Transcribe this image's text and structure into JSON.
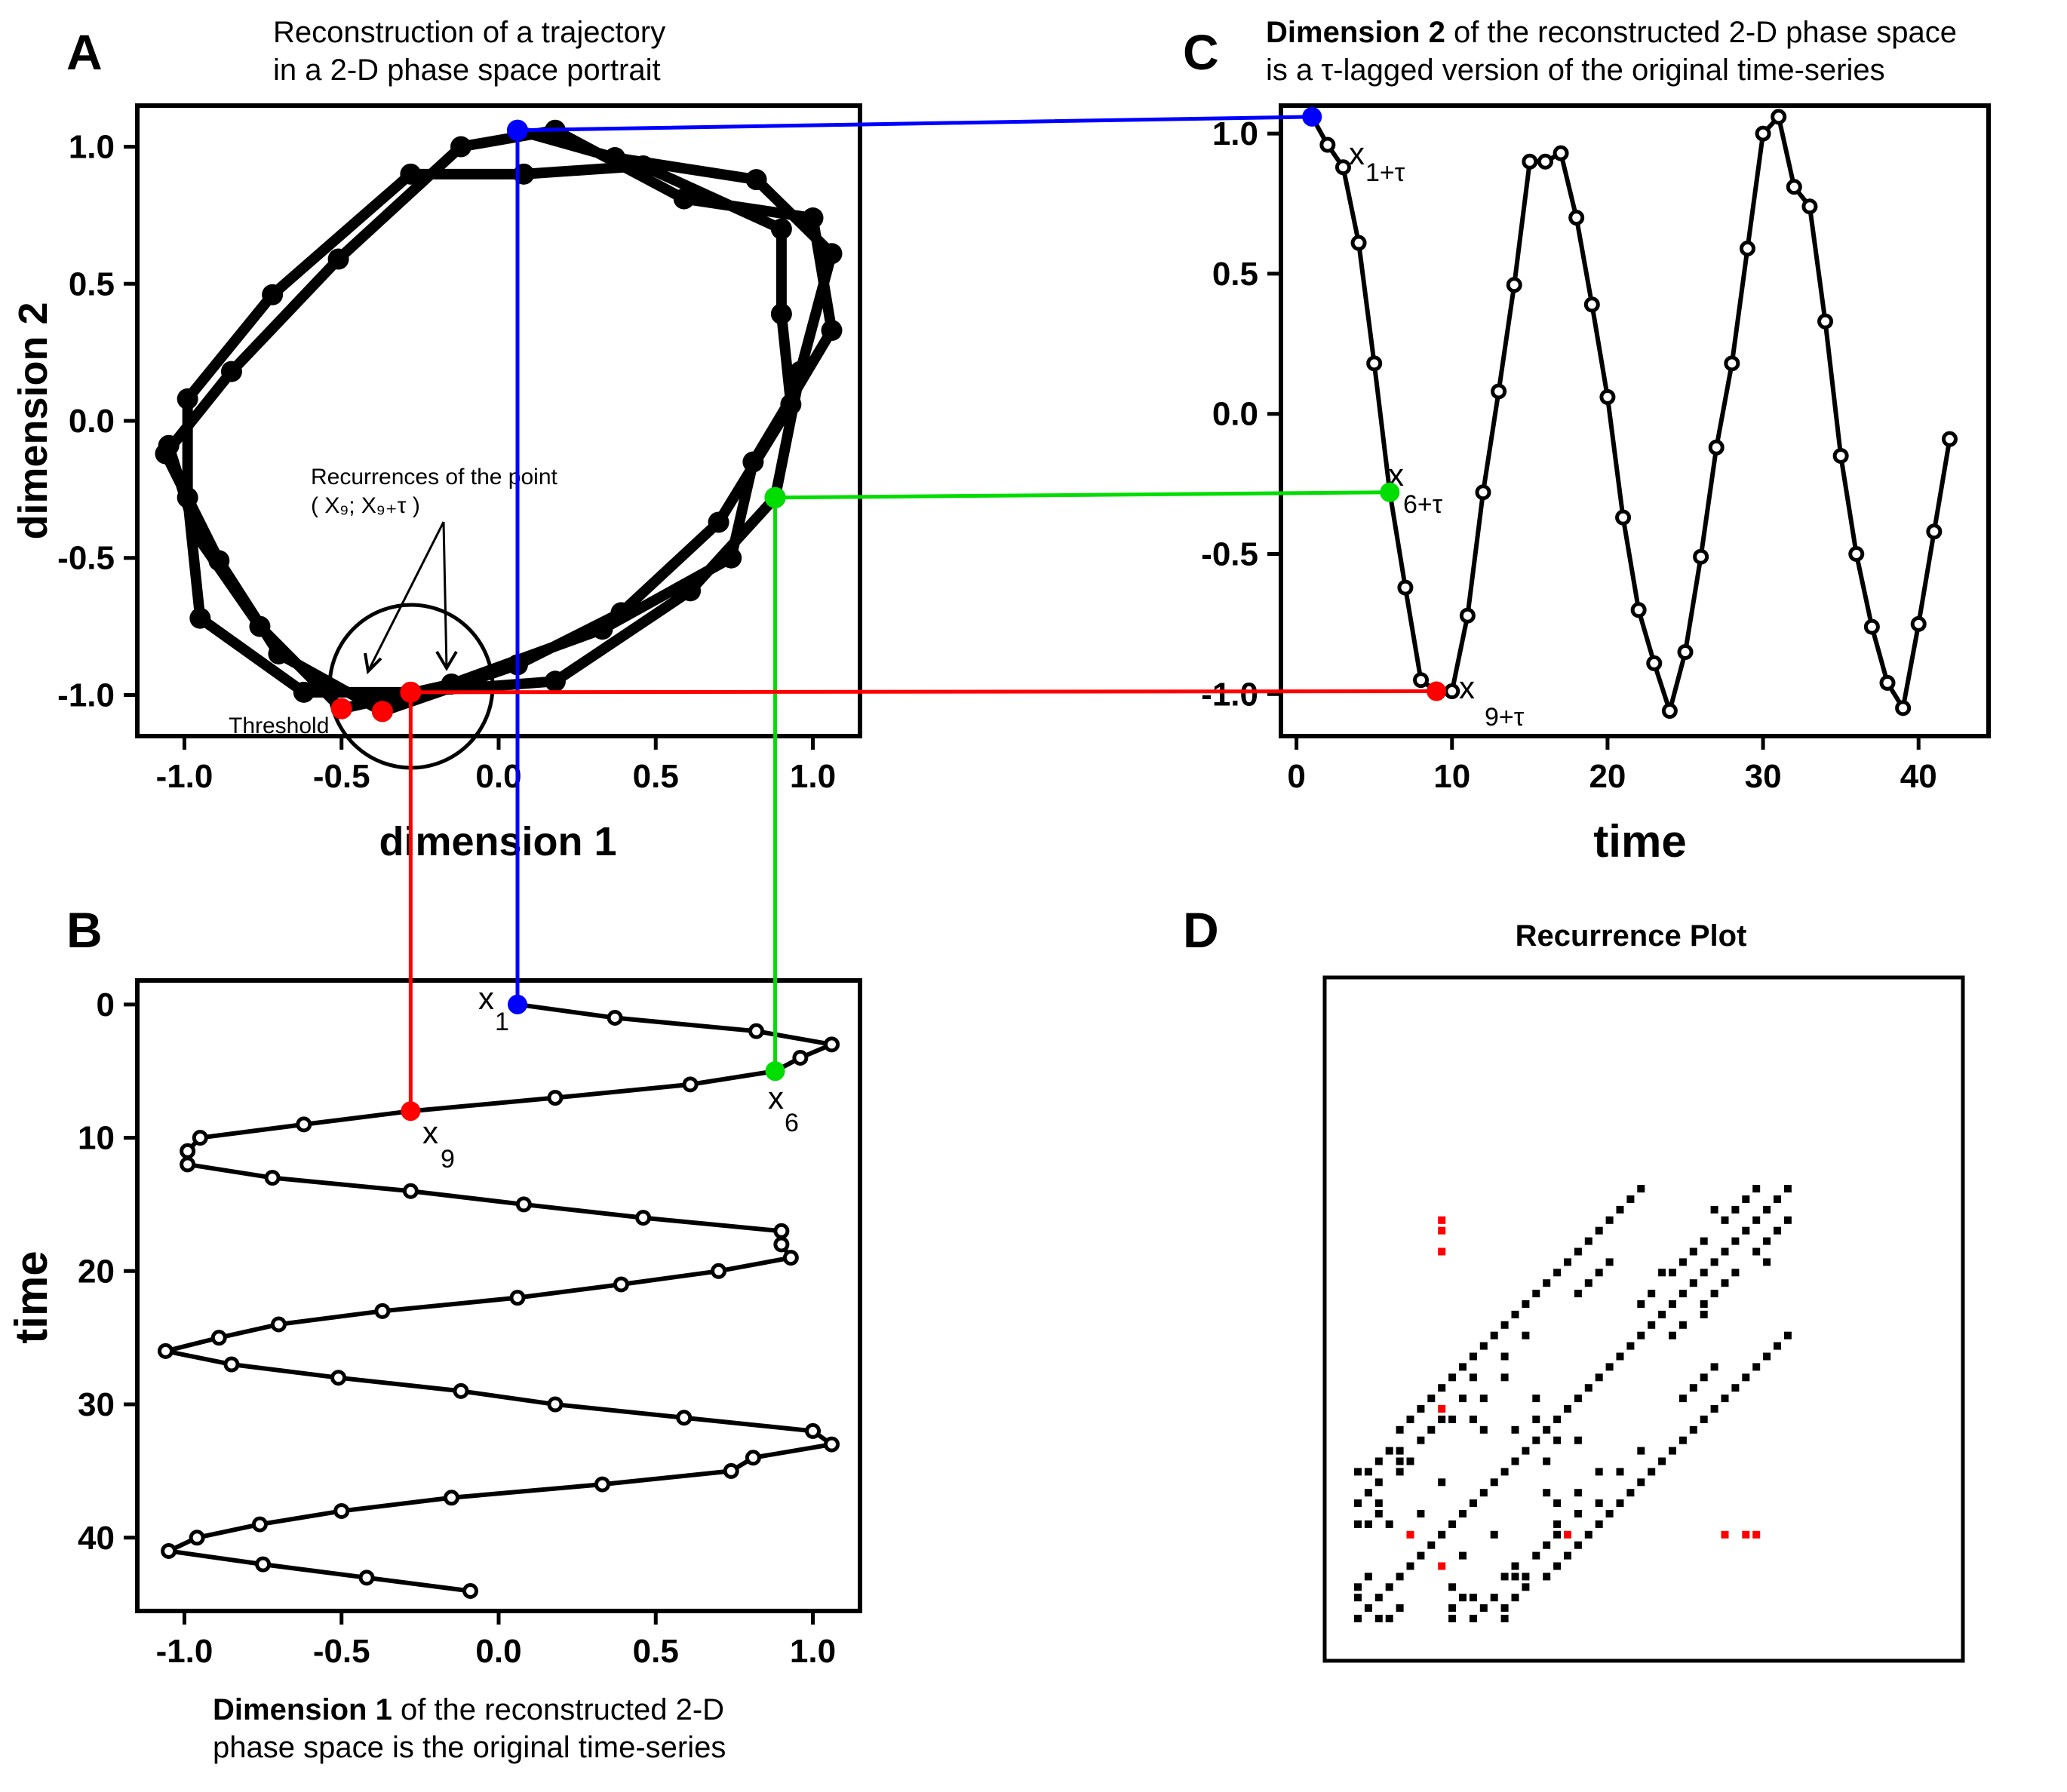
{
  "colors": {
    "x1": "#0000ff",
    "x6": "#00dd00",
    "x9": "#ff0000",
    "ink": "#000000",
    "rp_highlight": "#ff0000"
  },
  "panels": {
    "A": {
      "letter": "A",
      "caption": [
        "Reconstruction of a trajectory",
        "in a 2-D phase space portrait"
      ],
      "xlabel": "dimension 1",
      "ylabel": "dimension 2",
      "xticks": [
        "-1.0",
        "-0.5",
        "0.0",
        "0.5",
        "1.0"
      ],
      "yticks": [
        "1.0",
        "0.5",
        "0.0",
        "-0.5",
        "-1.0"
      ],
      "annotation": {
        "line1": "Recurrences of the point",
        "line2": "( X₉; X₉₊τ )"
      },
      "threshold_label": "Threshold"
    },
    "B": {
      "letter": "B",
      "caption_bold": "Dimension 1",
      "caption_rest": " of the reconstructed 2-D",
      "caption_line2": "phase space is the original time-series",
      "ylabel": "time",
      "xticks": [
        "-1.0",
        "-0.5",
        "0.0",
        "0.5",
        "1.0"
      ],
      "yticks": [
        "0",
        "10",
        "20",
        "30",
        "40"
      ],
      "labels": {
        "x1_main": "x",
        "x1_sub": "1",
        "x6_main": "x",
        "x6_sub": "6",
        "x9_main": "x",
        "x9_sub": "9"
      }
    },
    "C": {
      "letter": "C",
      "caption_bold": "Dimension 2",
      "caption_rest": " of the reconstructed 2-D phase space",
      "caption_line2": "is a τ-lagged version of the original time-series",
      "xlabel": "time",
      "xticks": [
        "0",
        "10",
        "20",
        "30",
        "40"
      ],
      "yticks": [
        "1.0",
        "0.5",
        "0.0",
        "-0.5",
        "-1.0"
      ],
      "labels": {
        "a_main": "x",
        "a_sub": "1+τ",
        "b_main": "x",
        "b_sub": "6+τ",
        "c_main": "x",
        "c_sub": "9+τ"
      }
    },
    "D": {
      "letter": "D",
      "title": "Recurrence Plot"
    }
  },
  "chart_data": [
    {
      "panel": "B",
      "type": "line",
      "series": [
        {
          "x": [
            0.06,
            0.37,
            0.82,
            1.06,
            0.96,
            0.88,
            0.61,
            0.18,
            -0.28,
            -0.62,
            -0.95,
            -0.99,
            -0.99,
            -0.72,
            -0.28,
            0.08,
            0.46,
            0.9,
            0.9,
            0.93,
            0.7,
            0.39,
            0.06,
            -0.37,
            -0.7,
            -0.89,
            -1.06,
            -0.85,
            -0.51,
            -0.12,
            0.18,
            0.59,
            1.0,
            1.06,
            0.81,
            0.74,
            0.33,
            -0.15,
            -0.5,
            -0.76,
            -0.96,
            -1.05,
            -0.75,
            -0.42,
            -0.09
          ],
          "y": [
            0,
            1,
            2,
            3,
            4,
            5,
            6,
            7,
            8,
            9,
            10,
            11,
            12,
            13,
            14,
            15,
            16,
            17,
            18,
            19,
            20,
            21,
            22,
            23,
            24,
            25,
            26,
            27,
            28,
            29,
            30,
            31,
            32,
            33,
            34,
            35,
            36,
            37,
            38,
            39,
            40,
            41,
            42,
            43,
            44
          ]
        }
      ],
      "xlim": [
        -1.15,
        1.15
      ],
      "ylim": [
        45.5,
        -1.8
      ],
      "ylabel": "time"
    },
    {
      "panel": "C",
      "type": "line",
      "series": [
        {
          "x": [
            1,
            2,
            3,
            4,
            5,
            6,
            7,
            8,
            9,
            10,
            11,
            12,
            13,
            14,
            15,
            16,
            17,
            18,
            19,
            20,
            21,
            22,
            23,
            24,
            25,
            26,
            27,
            28,
            29,
            30,
            31,
            32,
            33,
            34,
            35,
            36,
            37,
            38,
            39,
            40,
            41,
            42
          ],
          "y": [
            1.06,
            0.96,
            0.88,
            0.61,
            0.18,
            -0.28,
            -0.62,
            -0.95,
            -0.99,
            -0.99,
            -0.72,
            -0.28,
            0.08,
            0.46,
            0.9,
            0.9,
            0.93,
            0.7,
            0.39,
            0.06,
            -0.37,
            -0.7,
            -0.89,
            -1.06,
            -0.85,
            -0.51,
            -0.12,
            0.18,
            0.59,
            1.0,
            1.06,
            0.81,
            0.74,
            0.33,
            -0.15,
            -0.5,
            -0.76,
            -0.96,
            -1.05,
            -0.75,
            -0.42,
            -0.09
          ]
        }
      ],
      "xlim": [
        -1,
        44.5
      ],
      "ylim": [
        -1.15,
        1.1
      ],
      "xlabel": "time"
    },
    {
      "panel": "A",
      "type": "line",
      "series": [
        {
          "x": [
            0.06,
            0.37,
            0.82,
            1.06,
            0.96,
            0.88,
            0.61,
            0.18,
            -0.28,
            -0.62,
            -0.95,
            -0.99,
            -0.99,
            -0.72,
            -0.28,
            0.08,
            0.46,
            0.9,
            0.9,
            0.93,
            0.7,
            0.39,
            0.06,
            -0.37,
            -0.7,
            -0.89,
            -1.06,
            -0.85,
            -0.51,
            -0.12,
            0.18,
            0.59,
            1.0,
            1.06,
            0.81,
            0.74,
            0.33,
            -0.15,
            -0.5,
            -0.76,
            -0.96,
            -1.05
          ],
          "y": [
            1.06,
            0.96,
            0.88,
            0.61,
            0.18,
            -0.28,
            -0.62,
            -0.95,
            -0.99,
            -0.99,
            -0.72,
            -0.28,
            0.08,
            0.46,
            0.9,
            0.9,
            0.93,
            0.7,
            0.39,
            0.06,
            -0.37,
            -0.7,
            -0.89,
            -1.06,
            -0.85,
            -0.51,
            -0.12,
            0.18,
            0.59,
            1.0,
            1.06,
            0.81,
            0.74,
            0.33,
            -0.15,
            -0.5,
            -0.76,
            -0.96,
            -1.05,
            -0.75,
            -0.42,
            -0.09
          ]
        }
      ],
      "xlim": [
        -1.15,
        1.15
      ],
      "ylim": [
        -1.15,
        1.15
      ],
      "xlabel": "dimension 1",
      "ylabel": "dimension 2"
    },
    {
      "panel": "D",
      "type": "heatmap",
      "title": "Recurrence Plot",
      "size": 42,
      "recurrent_pairs": [
        [
          1,
          3
        ],
        [
          1,
          4
        ],
        [
          1,
          10
        ],
        [
          1,
          12
        ],
        [
          1,
          15
        ],
        [
          2,
          5
        ],
        [
          2,
          10
        ],
        [
          2,
          13
        ],
        [
          2,
          15
        ],
        [
          3,
          11
        ],
        [
          3,
          12
        ],
        [
          3,
          14
        ],
        [
          3,
          16
        ],
        [
          4,
          10
        ],
        [
          4,
          17
        ],
        [
          5,
          15
        ],
        [
          5,
          16
        ],
        [
          5,
          17
        ],
        [
          5,
          19
        ],
        [
          6,
          16
        ],
        [
          6,
          20
        ],
        [
          7,
          11
        ],
        [
          7,
          18
        ],
        [
          7,
          21
        ],
        [
          8,
          19
        ],
        [
          8,
          22
        ],
        [
          9,
          14
        ],
        [
          9,
          20
        ],
        [
          9,
          23
        ],
        [
          10,
          20
        ],
        [
          10,
          24
        ],
        [
          11,
          22
        ],
        [
          11,
          25
        ],
        [
          12,
          20
        ],
        [
          12,
          24
        ],
        [
          12,
          26
        ],
        [
          13,
          19
        ],
        [
          13,
          22
        ],
        [
          13,
          27
        ],
        [
          14,
          28
        ],
        [
          15,
          24
        ],
        [
          15,
          26
        ],
        [
          15,
          29
        ],
        [
          16,
          19
        ],
        [
          16,
          30
        ],
        [
          17,
          28
        ],
        [
          17,
          31
        ],
        [
          18,
          20
        ],
        [
          18,
          22
        ],
        [
          18,
          32
        ],
        [
          19,
          33
        ],
        [
          20,
          34
        ],
        [
          21,
          35
        ],
        [
          22,
          32
        ],
        [
          22,
          36
        ],
        [
          23,
          33
        ],
        [
          23,
          37
        ],
        [
          24,
          34
        ],
        [
          24,
          38
        ],
        [
          25,
          35
        ],
        [
          25,
          39
        ],
        [
          26,
          40
        ],
        [
          27,
          41
        ],
        [
          28,
          31
        ],
        [
          28,
          42
        ],
        [
          29,
          32
        ],
        [
          30,
          34
        ],
        [
          31,
          34
        ],
        [
          32,
          35
        ],
        [
          33,
          36
        ],
        [
          34,
          37
        ],
        [
          35,
          40
        ],
        [
          36,
          39
        ],
        [
          37,
          40
        ],
        [
          38,
          41
        ],
        [
          39,
          42
        ]
      ],
      "highlight_pairs": [
        [
          6,
          9
        ],
        [
          9,
          21
        ],
        [
          9,
          36
        ],
        [
          9,
          38
        ],
        [
          9,
          39
        ]
      ]
    }
  ]
}
